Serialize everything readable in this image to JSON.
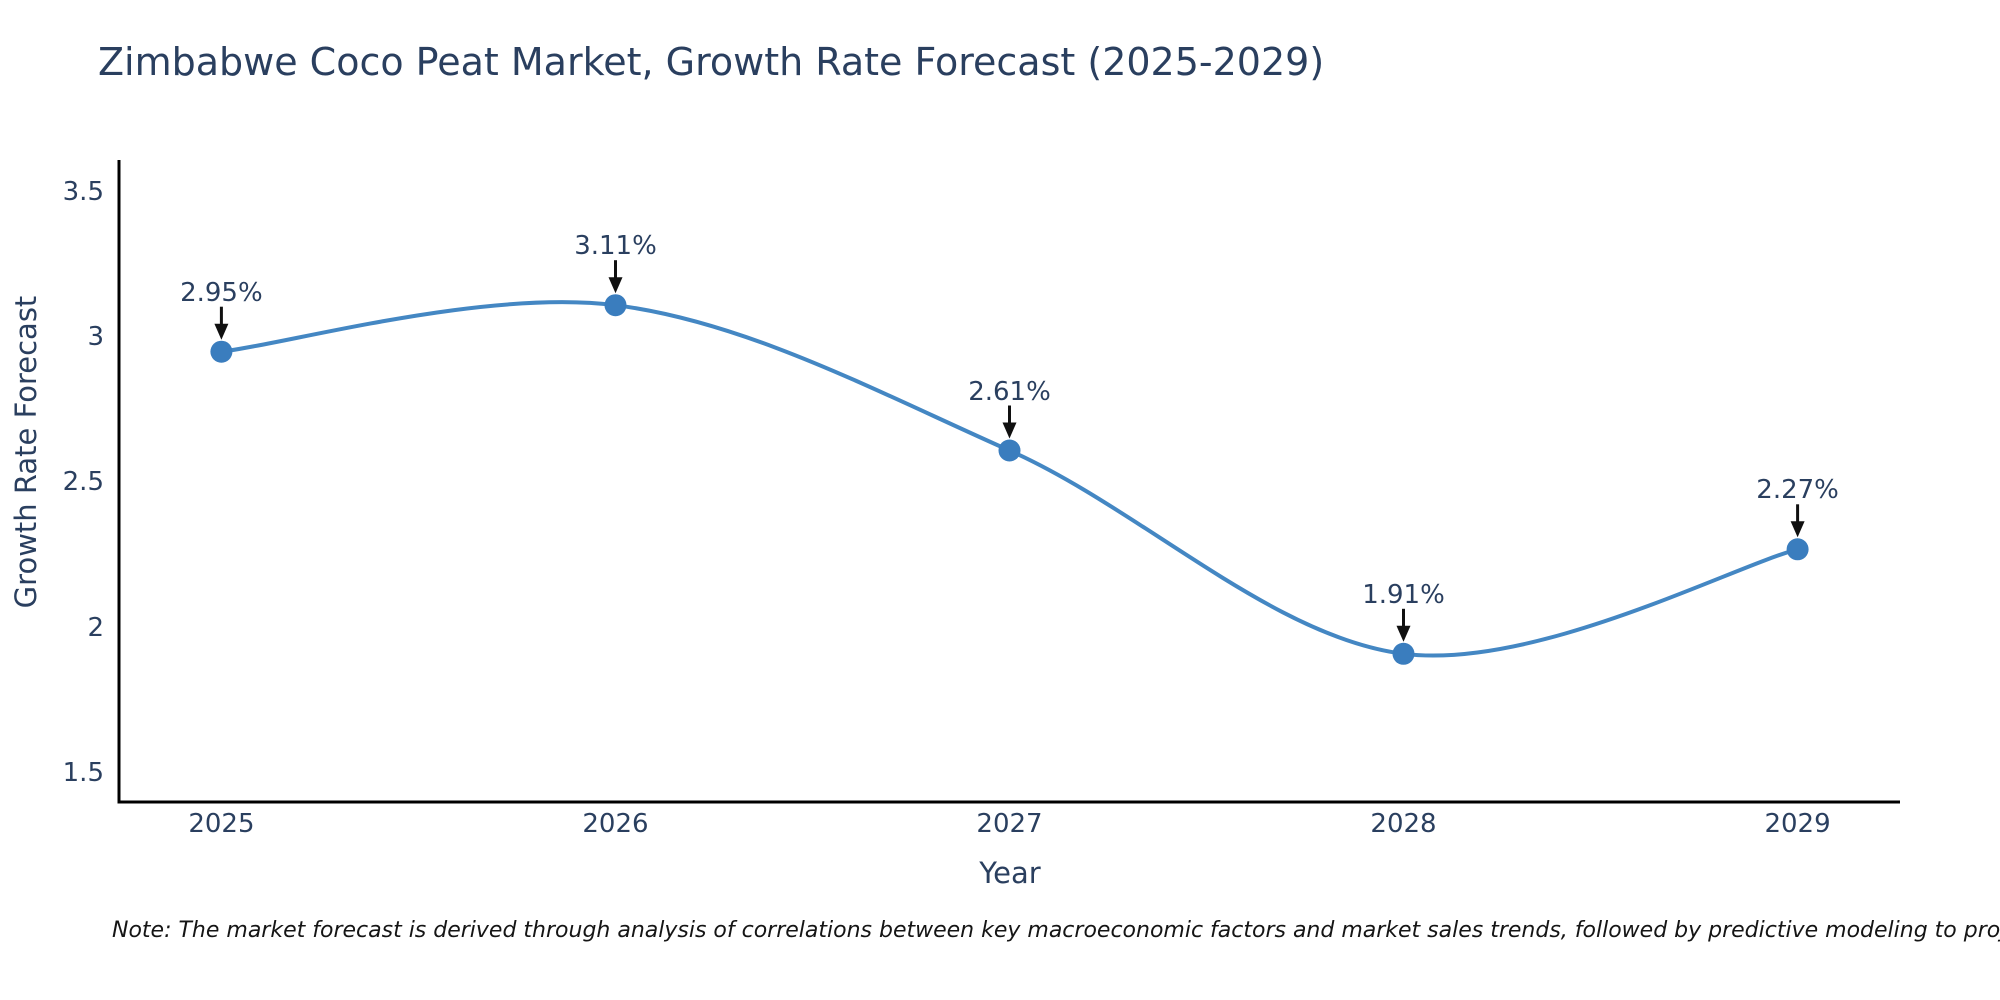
{
  "note": "Note: The market forecast is derived through analysis of correlations between key macroeconomic factors and market sales trends, followed by predictive modeling to project future sales",
  "chart_data": {
    "type": "line",
    "line_shape": "spline",
    "title": "Zimbabwe Coco Peat Market, Growth Rate Forecast (2025-2029)",
    "xlabel": "Year",
    "ylabel": "Growth Rate Forecast",
    "x": [
      2025,
      2026,
      2027,
      2028,
      2029
    ],
    "y": [
      2.95,
      3.11,
      2.61,
      1.91,
      2.27
    ],
    "point_labels": [
      "2.95%",
      "3.11%",
      "2.61%",
      "1.91%",
      "2.27%"
    ],
    "x_tick_labels": [
      "2025",
      "2026",
      "2027",
      "2028",
      "2029"
    ],
    "y_tick_values": [
      3.5,
      3.0,
      2.5,
      2.0,
      1.5
    ],
    "y_tick_labels": [
      "3.5",
      "3",
      "2.5",
      "2",
      "1.5"
    ],
    "xlim": [
      2024.74,
      2029.26
    ],
    "ylim": [
      1.4,
      3.61
    ],
    "grid": false,
    "legend": false,
    "annotations_have_arrows": true,
    "colors": {
      "line": "#4487c3",
      "marker": "#3a7dbe",
      "axis": "#000000",
      "tick_text": "#2a3f5f",
      "title_text": "#2a3f5f",
      "arrow": "#101010",
      "note_text": "#151515",
      "background": "#ffffff"
    }
  }
}
